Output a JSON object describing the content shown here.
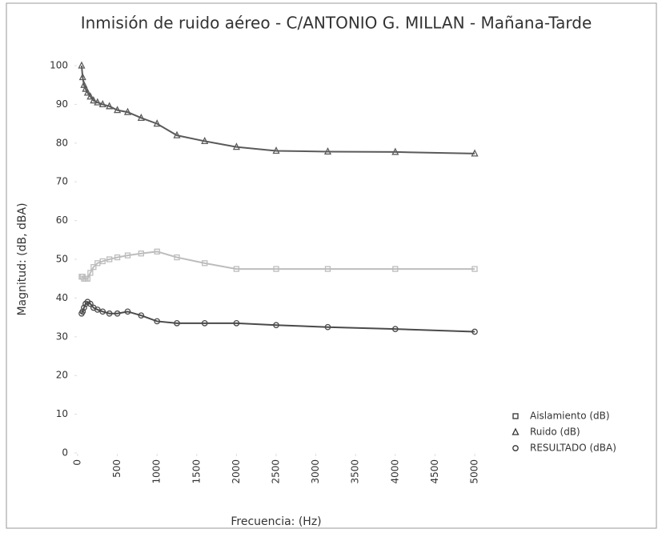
{
  "chart_data": {
    "type": "line",
    "title": "Inmisión de ruido aéreo - C/ANTONIO G. MILLAN - Mañana-Tarde",
    "x_label": "Frecuencia: (Hz)",
    "y_label": "Magnitud: (dB, dBA)",
    "x": [
      50,
      63,
      80,
      100,
      125,
      160,
      200,
      250,
      315,
      400,
      500,
      630,
      800,
      1000,
      1250,
      1600,
      2000,
      2500,
      3150,
      4000,
      5000
    ],
    "series": [
      {
        "name": "Aislamiento (dB)",
        "color": "#bdbdbd",
        "marker": "square",
        "values": [
          45.5,
          45.5,
          45,
          45,
          45,
          46.5,
          48,
          49,
          49.5,
          50,
          50.5,
          51,
          51.5,
          52,
          50.5,
          49,
          47.5,
          47.5,
          47.5,
          47.5,
          47.5
        ]
      },
      {
        "name": "Ruido (dB)",
        "color": "#5a5a5a",
        "marker": "triangle",
        "values": [
          100,
          97,
          95,
          94,
          93,
          92,
          91,
          90.5,
          90,
          89.5,
          88.5,
          88,
          86.5,
          85,
          82,
          80.5,
          79,
          78,
          77.8,
          77.7,
          77.3
        ]
      },
      {
        "name": "RESULTADO (dBA)",
        "color": "#4a4a4a",
        "marker": "circle",
        "values": [
          36,
          36.5,
          37.5,
          38.5,
          39,
          38.5,
          37.5,
          37,
          36.5,
          36,
          36,
          36.5,
          35.5,
          34,
          33.5,
          33.5,
          33.5,
          33,
          32.5,
          32,
          31.3
        ]
      }
    ],
    "xlim": [
      0,
      5000
    ],
    "ylim": [
      0,
      100
    ],
    "xticks": [
      0,
      500,
      1000,
      1500,
      2000,
      2500,
      3000,
      3500,
      4000,
      4500,
      5000
    ],
    "yticks": [
      0,
      10,
      20,
      30,
      40,
      50,
      60,
      70,
      80,
      90,
      100
    ],
    "legend": "right"
  }
}
